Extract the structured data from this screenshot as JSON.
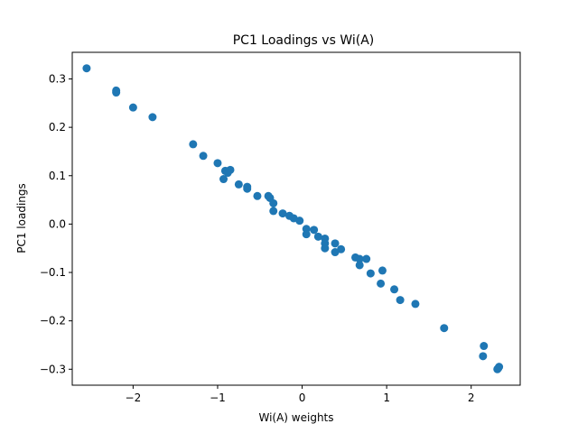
{
  "chart_data": {
    "type": "scatter",
    "title": "PC1 Loadings vs Wi(A)",
    "xlabel": "Wi(A) weights",
    "ylabel": "PC1 loadings",
    "xlim": [
      -2.72,
      2.58
    ],
    "ylim": [
      -0.333,
      0.355
    ],
    "xticks": [
      -2,
      -1,
      0,
      1,
      2
    ],
    "yticks": [
      -0.3,
      -0.2,
      -0.1,
      0.0,
      0.1,
      0.2,
      0.3
    ],
    "xtick_labels": [
      "−2",
      "−1",
      "0",
      "1",
      "2"
    ],
    "ytick_labels": [
      "−0.3",
      "−0.2",
      "−0.1",
      "0.0",
      "0.1",
      "0.2",
      "0.3"
    ],
    "grid": false,
    "marker_color": "#1f77b4",
    "points": [
      {
        "x": -2.55,
        "y": 0.322
      },
      {
        "x": -2.2,
        "y": 0.276
      },
      {
        "x": -2.2,
        "y": 0.272
      },
      {
        "x": -2.0,
        "y": 0.241
      },
      {
        "x": -1.77,
        "y": 0.221
      },
      {
        "x": -1.29,
        "y": 0.165
      },
      {
        "x": -1.17,
        "y": 0.141
      },
      {
        "x": -1.0,
        "y": 0.126
      },
      {
        "x": -0.91,
        "y": 0.11
      },
      {
        "x": -0.85,
        "y": 0.112
      },
      {
        "x": -0.88,
        "y": 0.106
      },
      {
        "x": -0.93,
        "y": 0.093
      },
      {
        "x": -0.75,
        "y": 0.082
      },
      {
        "x": -0.65,
        "y": 0.077
      },
      {
        "x": -0.65,
        "y": 0.073
      },
      {
        "x": -0.53,
        "y": 0.058
      },
      {
        "x": -0.4,
        "y": 0.058
      },
      {
        "x": -0.38,
        "y": 0.054
      },
      {
        "x": -0.34,
        "y": 0.043
      },
      {
        "x": -0.34,
        "y": 0.027
      },
      {
        "x": -0.23,
        "y": 0.022
      },
      {
        "x": -0.15,
        "y": 0.017
      },
      {
        "x": -0.1,
        "y": 0.012
      },
      {
        "x": -0.03,
        "y": 0.007
      },
      {
        "x": 0.05,
        "y": -0.01
      },
      {
        "x": 0.05,
        "y": -0.021
      },
      {
        "x": 0.14,
        "y": -0.012
      },
      {
        "x": 0.19,
        "y": -0.026
      },
      {
        "x": 0.27,
        "y": -0.03
      },
      {
        "x": 0.27,
        "y": -0.04
      },
      {
        "x": 0.27,
        "y": -0.05
      },
      {
        "x": 0.39,
        "y": -0.04
      },
      {
        "x": 0.39,
        "y": -0.058
      },
      {
        "x": 0.46,
        "y": -0.052
      },
      {
        "x": 0.63,
        "y": -0.069
      },
      {
        "x": 0.68,
        "y": -0.072
      },
      {
        "x": 0.76,
        "y": -0.072
      },
      {
        "x": 0.68,
        "y": -0.085
      },
      {
        "x": 0.81,
        "y": -0.102
      },
      {
        "x": 0.95,
        "y": -0.096
      },
      {
        "x": 0.93,
        "y": -0.123
      },
      {
        "x": 1.09,
        "y": -0.135
      },
      {
        "x": 1.16,
        "y": -0.157
      },
      {
        "x": 1.34,
        "y": -0.165
      },
      {
        "x": 1.68,
        "y": -0.215
      },
      {
        "x": 2.15,
        "y": -0.252
      },
      {
        "x": 2.14,
        "y": -0.273
      },
      {
        "x": 2.33,
        "y": -0.295
      },
      {
        "x": 2.31,
        "y": -0.3
      },
      {
        "x": 2.32,
        "y": -0.298
      }
    ]
  }
}
